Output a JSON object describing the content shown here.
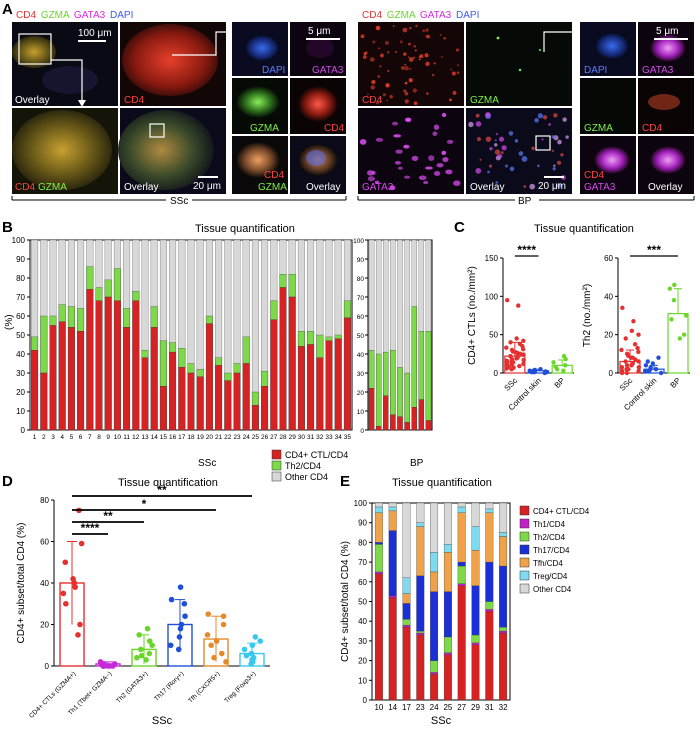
{
  "colors": {
    "ctl": "#d62222",
    "th1": "#c020c8",
    "th2": "#7ed94a",
    "th17": "#1b2fd6",
    "tfh": "#f0a24a",
    "treg": "#7fd9ef",
    "other": "#d8d8d8",
    "red": "#e53030",
    "blue": "#1f4fd6",
    "green": "#6ad62a",
    "magenta": "#d42adf",
    "orange": "#e58a2a",
    "cyan": "#38c8ef",
    "violet": "#c42ad8"
  },
  "panelA": {
    "letter": "A",
    "left": {
      "channels": [
        {
          "text": "CD4",
          "color": "#e53030"
        },
        {
          "text": "GZMA",
          "color": "#6ad62a"
        },
        {
          "text": "GATA3",
          "color": "#d42adf"
        },
        {
          "text": "DAPI",
          "color": "#3a5cf0"
        }
      ],
      "group_label": "SSc",
      "scale_main": "100 μm",
      "scale_mid": "20 μm",
      "scale_zoom": "5 μm",
      "tile_labels": {
        "t1": "Overlay",
        "t2": "CD4",
        "t3a": "CD4",
        "t3b": "GZMA",
        "t4": "Overlay",
        "z1": "DAPI",
        "z2": "GATA3",
        "z3": "GZMA",
        "z4": "CD4",
        "z5a": "CD4",
        "z5b": "GZMA",
        "z6": "Overlay"
      }
    },
    "right": {
      "channels": [
        {
          "text": "CD4",
          "color": "#e53030"
        },
        {
          "text": "GZMA",
          "color": "#6ad62a"
        },
        {
          "text": "GATA3",
          "color": "#d42adf"
        },
        {
          "text": "DAPI",
          "color": "#3a5cf0"
        }
      ],
      "group_label": "BP",
      "scale_mid": "20 μm",
      "scale_zoom": "5 μm",
      "tile_labels": {
        "t1": "CD4",
        "t2": "GZMA",
        "t3": "GATA3",
        "t4": "Overlay",
        "z1": "DAPI",
        "z2": "GATA3",
        "z3": "GZMA",
        "z4": "CD4",
        "z5": "CD4",
        "z6": "CD4",
        "z6b": "GATA3",
        "z7": "Overlay"
      }
    }
  },
  "chart_data": [
    {
      "id": "B",
      "type": "bar",
      "stacked": true,
      "letter": "B",
      "title": "Tissue quantification",
      "ylabel": "(%)",
      "ylim": [
        0,
        100
      ],
      "yticks": [
        0,
        10,
        20,
        30,
        40,
        50,
        60,
        70,
        80,
        90,
        100
      ],
      "groups": [
        {
          "name": "SSc",
          "categories": [
            "1",
            "2",
            "3",
            "4",
            "5",
            "6",
            "7",
            "8",
            "9",
            "10",
            "11",
            "12",
            "13",
            "14",
            "15",
            "16",
            "17",
            "18",
            "19",
            "20",
            "21",
            "22",
            "23",
            "24",
            "25",
            "26",
            "27",
            "28",
            "29",
            "30",
            "31",
            "32",
            "33",
            "34",
            "35"
          ],
          "series": [
            {
              "name": "CD4+ CTL/CD4",
              "values": [
                42,
                30,
                55,
                57,
                54,
                52,
                74,
                68,
                70,
                68,
                54,
                68,
                38,
                54,
                23,
                41,
                33,
                30,
                28,
                56,
                34,
                26,
                30,
                35,
                13,
                23,
                58,
                75,
                70,
                44,
                45,
                38,
                47,
                48,
                59
              ]
            },
            {
              "name": "Th2/CD4",
              "values": [
                7,
                30,
                5,
                9,
                11,
                12,
                12,
                7,
                9,
                17,
                10,
                5,
                4,
                11,
                24,
                5,
                10,
                5,
                4,
                4,
                4,
                4,
                5,
                14,
                7,
                8,
                10,
                7,
                12,
                8,
                7,
                12,
                2,
                2,
                9
              ]
            }
          ]
        },
        {
          "name": "BP",
          "categories": [
            "",
            "",
            "",
            "",
            "",
            "",
            "",
            "",
            ""
          ],
          "series": [
            {
              "name": "CD4+ CTL/CD4",
              "values": [
                22,
                2,
                18,
                8,
                7,
                4,
                12,
                16,
                5
              ]
            },
            {
              "name": "Th2/CD4",
              "values": [
                20,
                38,
                23,
                34,
                26,
                26,
                53,
                36,
                47
              ]
            }
          ]
        }
      ],
      "legend": [
        "CD4+ CTL/CD4",
        "Th2/CD4",
        "Other CD4"
      ]
    },
    {
      "id": "C1",
      "type": "scatter",
      "letter": "C",
      "title": "Tissue quantification",
      "ylabel": "CD4+ CTLs (no./mm²)",
      "ylim": [
        0,
        150
      ],
      "yticks": [
        0,
        50,
        100,
        150
      ],
      "categories": [
        "SSc",
        "Control skin",
        "BP"
      ],
      "means": [
        22,
        3,
        10
      ],
      "sd": [
        18,
        2,
        7
      ],
      "points": [
        [
          95,
          88,
          45,
          42,
          40,
          38,
          35,
          33,
          31,
          30,
          28,
          27,
          26,
          25,
          24,
          22,
          21,
          20,
          19,
          18,
          17,
          16,
          15,
          14,
          13,
          12,
          11,
          10,
          9,
          8,
          7,
          6,
          5
        ],
        [
          5,
          4,
          3,
          3,
          2,
          2,
          2,
          1,
          1,
          1,
          0
        ],
        [
          22,
          18,
          14,
          10,
          8,
          5,
          3
        ]
      ],
      "significance": [
        {
          "from": 0,
          "to": 1,
          "label": "****"
        }
      ]
    },
    {
      "id": "C2",
      "type": "scatter",
      "ylabel": "Th2 (no./mm²)",
      "ylim": [
        0,
        60
      ],
      "yticks": [
        0,
        20,
        40,
        60
      ],
      "categories": [
        "SSc",
        "Control skin",
        "BP"
      ],
      "means": [
        6,
        2,
        31
      ],
      "sd": [
        6,
        2,
        13
      ],
      "points": [
        [
          34,
          27,
          22,
          20,
          18,
          15,
          13,
          12,
          11,
          10,
          9,
          8,
          8,
          7,
          6,
          6,
          5,
          5,
          4,
          4,
          3,
          3,
          2,
          2,
          1,
          1,
          0,
          0
        ],
        [
          8,
          6,
          5,
          4,
          3,
          2,
          2,
          1,
          1,
          0
        ],
        [
          46,
          44,
          38,
          30,
          28,
          20,
          18
        ]
      ],
      "significance": [
        {
          "from": 0,
          "to": 2,
          "label": "***"
        }
      ]
    },
    {
      "id": "D",
      "type": "bar",
      "letter": "D",
      "title": "Tissue quantification",
      "ylabel": "CD4+ subset/total CD4 (%)",
      "xlabel": "SSc",
      "ylim": [
        0,
        80
      ],
      "yticks": [
        0,
        20,
        40,
        60,
        80
      ],
      "categories": [
        "CD4+ CTLs (GZMA+)",
        "Th1 (Tbet+ GZMA−)",
        "Th2 (GATA3+)",
        "Th17 (Rorγ+)",
        "Tfh (CXCR5+)",
        "Treg (Foxp3+)"
      ],
      "values": [
        40,
        1,
        8,
        20,
        13,
        6
      ],
      "sd": [
        20,
        1,
        7,
        12,
        11,
        5
      ],
      "points": [
        [
          75,
          59,
          50,
          42,
          40,
          38,
          35,
          30,
          20,
          15
        ],
        [
          2,
          1,
          1,
          1,
          0,
          0,
          0,
          0,
          0,
          0
        ],
        [
          18,
          15,
          12,
          10,
          8,
          6,
          5,
          4,
          3
        ],
        [
          38,
          32,
          30,
          24,
          20,
          18,
          14,
          10,
          8
        ],
        [
          25,
          24,
          20,
          15,
          12,
          10,
          6,
          4,
          2
        ],
        [
          14,
          12,
          10,
          8,
          6,
          5,
          4,
          3,
          2,
          1
        ]
      ],
      "significance": [
        {
          "from": 0,
          "to": 1,
          "label": "****"
        },
        {
          "from": 0,
          "to": 2,
          "label": "**"
        },
        {
          "from": 0,
          "to": 4,
          "label": "*"
        },
        {
          "from": 0,
          "to": 5,
          "label": "**"
        }
      ]
    },
    {
      "id": "E",
      "type": "bar",
      "stacked": true,
      "letter": "E",
      "title": "Tissue quantification",
      "ylabel": "CD4+ subset/total CD4 (%)",
      "xlabel": "SSc",
      "ylim": [
        0,
        100
      ],
      "yticks": [
        0,
        10,
        20,
        30,
        40,
        50,
        60,
        70,
        80,
        90,
        100
      ],
      "categories": [
        "10",
        "14",
        "17",
        "23",
        "24",
        "25",
        "27",
        "29",
        "31",
        "32"
      ],
      "series": [
        {
          "name": "CD4+ CTL/CD4",
          "values": [
            64,
            52,
            37,
            33,
            13,
            23,
            58,
            28,
            45,
            34
          ]
        },
        {
          "name": "Th1/CD4",
          "values": [
            1,
            1,
            1,
            1,
            1,
            1,
            1,
            1,
            1,
            1
          ]
        },
        {
          "name": "Th2/CD4",
          "values": [
            14,
            0,
            3,
            1,
            6,
            8,
            9,
            4,
            4,
            2
          ]
        },
        {
          "name": "Th17/CD4",
          "values": [
            1,
            33,
            8,
            28,
            35,
            23,
            2,
            25,
            20,
            31
          ]
        },
        {
          "name": "Tfh/CD4",
          "values": [
            15,
            10,
            5,
            25,
            10,
            20,
            25,
            18,
            25,
            15
          ]
        },
        {
          "name": "Treg/CD4",
          "values": [
            3,
            2,
            8,
            2,
            10,
            4,
            3,
            12,
            2,
            2
          ]
        },
        {
          "name": "Other CD4",
          "values": [
            2,
            2,
            38,
            10,
            25,
            21,
            2,
            12,
            3,
            15
          ]
        }
      ]
    }
  ]
}
